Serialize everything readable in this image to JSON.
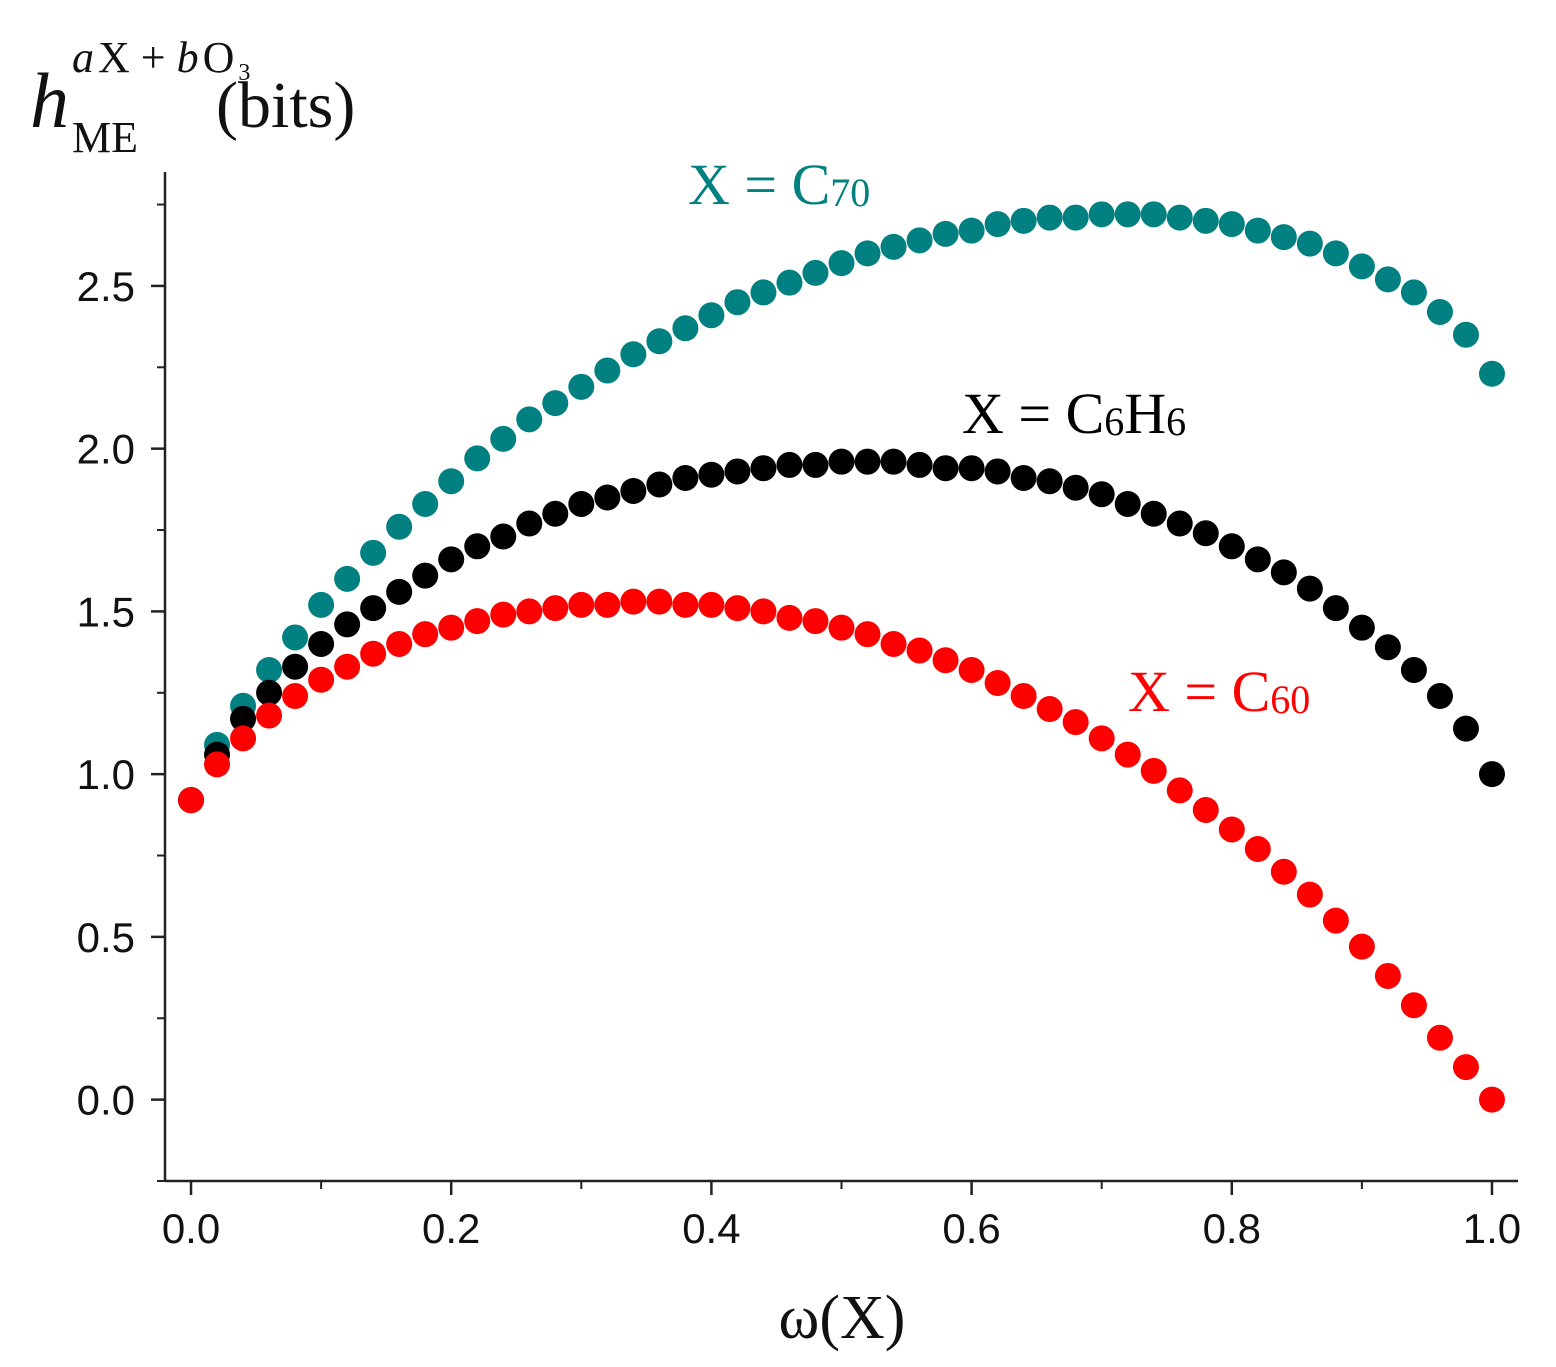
{
  "chart_data": {
    "type": "scatter",
    "title": "",
    "ylabel": {
      "base": "h",
      "subscript": "ME",
      "superscript_a": "a",
      "superscript_x": "X + ",
      "superscript_b": "b",
      "superscript_o": "O",
      "superscript_o_sub": "3",
      "unit": "(bits)"
    },
    "xlabel": "ω(X)",
    "xlim": [
      -0.02,
      1.02
    ],
    "ylim": [
      -0.25,
      2.85
    ],
    "xticks": [
      0.0,
      0.2,
      0.4,
      0.6,
      0.8,
      1.0
    ],
    "xtick_labels": [
      "0.0",
      "0.2",
      "0.4",
      "0.6",
      "0.8",
      "1.0"
    ],
    "yticks": [
      0.0,
      0.5,
      1.0,
      1.5,
      2.0,
      2.5
    ],
    "ytick_labels": [
      "0.0",
      "0.5",
      "1.0",
      "1.5",
      "2.0",
      "2.5"
    ],
    "grid": false,
    "x": [
      0.0,
      0.02,
      0.04,
      0.06,
      0.08,
      0.1,
      0.12,
      0.14,
      0.16,
      0.18,
      0.2,
      0.22,
      0.24,
      0.26,
      0.28,
      0.3,
      0.32,
      0.34,
      0.36,
      0.38,
      0.4,
      0.42,
      0.44,
      0.46,
      0.48,
      0.5,
      0.52,
      0.54,
      0.56,
      0.58,
      0.6,
      0.62,
      0.64,
      0.66,
      0.68,
      0.7,
      0.72,
      0.74,
      0.76,
      0.78,
      0.8,
      0.82,
      0.84,
      0.86,
      0.88,
      0.9,
      0.92,
      0.94,
      0.96,
      0.98,
      1.0
    ],
    "series": [
      {
        "name": "C70",
        "label_prefix": "X = C",
        "label_subscript": "70",
        "color": "#008080",
        "values": [
          0.92,
          1.09,
          1.21,
          1.32,
          1.42,
          1.52,
          1.6,
          1.68,
          1.76,
          1.83,
          1.9,
          1.97,
          2.03,
          2.09,
          2.14,
          2.19,
          2.24,
          2.29,
          2.33,
          2.37,
          2.41,
          2.45,
          2.48,
          2.51,
          2.54,
          2.57,
          2.6,
          2.62,
          2.64,
          2.66,
          2.67,
          2.69,
          2.7,
          2.71,
          2.71,
          2.72,
          2.72,
          2.72,
          2.71,
          2.7,
          2.69,
          2.67,
          2.65,
          2.63,
          2.6,
          2.56,
          2.52,
          2.48,
          2.42,
          2.35,
          2.23
        ]
      },
      {
        "name": "C6H6",
        "label_prefix": "X = C",
        "label_subscript": "6",
        "label_middle": "H",
        "label_subscript2": "6",
        "color": "#000000",
        "values": [
          0.92,
          1.06,
          1.17,
          1.25,
          1.33,
          1.4,
          1.46,
          1.51,
          1.56,
          1.61,
          1.66,
          1.7,
          1.73,
          1.77,
          1.8,
          1.83,
          1.85,
          1.87,
          1.89,
          1.91,
          1.92,
          1.93,
          1.94,
          1.95,
          1.95,
          1.96,
          1.96,
          1.96,
          1.95,
          1.94,
          1.94,
          1.93,
          1.91,
          1.9,
          1.88,
          1.86,
          1.83,
          1.8,
          1.77,
          1.74,
          1.7,
          1.66,
          1.62,
          1.57,
          1.51,
          1.45,
          1.39,
          1.32,
          1.24,
          1.14,
          1.0
        ]
      },
      {
        "name": "C60",
        "label_prefix": "X = C",
        "label_subscript": "60",
        "color": "#ff0000",
        "values": [
          0.92,
          1.03,
          1.11,
          1.18,
          1.24,
          1.29,
          1.33,
          1.37,
          1.4,
          1.43,
          1.45,
          1.47,
          1.49,
          1.5,
          1.51,
          1.52,
          1.52,
          1.53,
          1.53,
          1.52,
          1.52,
          1.51,
          1.5,
          1.48,
          1.47,
          1.45,
          1.43,
          1.4,
          1.38,
          1.35,
          1.32,
          1.28,
          1.24,
          1.2,
          1.16,
          1.11,
          1.06,
          1.01,
          0.95,
          0.89,
          0.83,
          0.77,
          0.7,
          0.63,
          0.55,
          0.47,
          0.38,
          0.29,
          0.19,
          0.1,
          0.0
        ]
      }
    ]
  }
}
